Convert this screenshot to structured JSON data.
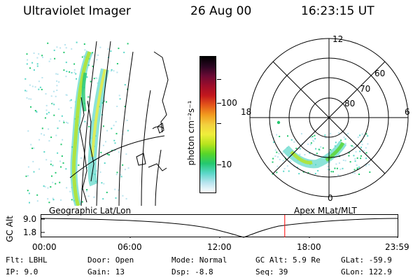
{
  "header": {
    "instrument": "Ultraviolet Imager",
    "date": "26 Aug 00",
    "time": "16:23:15 UT"
  },
  "colorbar": {
    "label": "photon cm⁻²s⁻¹",
    "ticks": [
      "100",
      "10"
    ],
    "colors": [
      "#ffffff",
      "#b9e4ef",
      "#5ad7c8",
      "#24c86f",
      "#57d629",
      "#b7e41d",
      "#f0ee3b",
      "#f3d03e",
      "#f29b1e",
      "#e4561a",
      "#c3171d",
      "#9e0d2a",
      "#6b0a34",
      "#2a0622",
      "#000000"
    ]
  },
  "polar_plot": {
    "mlt_labels": [
      "12",
      "18",
      "6",
      "0"
    ],
    "lat_labels": [
      "60",
      "70",
      "80"
    ]
  },
  "map_labels": {
    "left": "Geographic Lat/Lon",
    "right": "Apex MLat/MLT"
  },
  "altitude_strip": {
    "axis_title": "GC Alt",
    "ticks": [
      "9.0",
      "1.8"
    ],
    "time_ticks": [
      "00:00",
      "06:00",
      "12:00",
      "18:00",
      "23:59"
    ],
    "current_time_fraction": 0.684
  },
  "footer": {
    "flt": "Flt:  LBHL",
    "ip": "IP:  9.0",
    "door": "Door: Open",
    "gain": "Gain: 13",
    "mode": "Mode: Normal",
    "dsp": "Dsp:    -8.8",
    "gc_alt": "GC Alt: 5.9 Re",
    "seq": "Seq: 39",
    "glat": "GLat: -59.9",
    "glon": "GLon: 122.9"
  }
}
